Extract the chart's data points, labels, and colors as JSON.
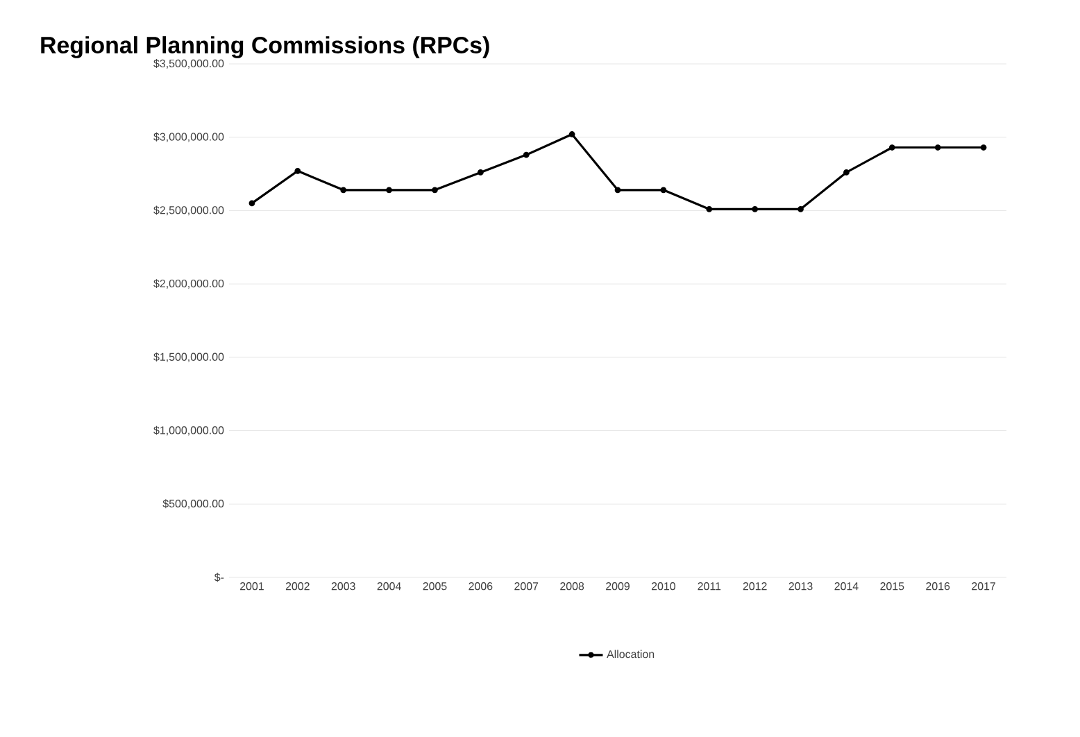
{
  "chart_data": {
    "type": "line",
    "title": "Regional Planning Commissions (RPCs)",
    "categories": [
      "2001",
      "2002",
      "2003",
      "2004",
      "2005",
      "2006",
      "2007",
      "2008",
      "2009",
      "2010",
      "2011",
      "2012",
      "2013",
      "2014",
      "2015",
      "2016",
      "2017"
    ],
    "series": [
      {
        "name": "Allocation",
        "color": "#000000",
        "values": [
          2550000,
          2770000,
          2640000,
          2640000,
          2640000,
          2760000,
          2880000,
          3020000,
          2640000,
          2640000,
          2510000,
          2510000,
          2510000,
          2760000,
          2930000,
          2930000,
          2930000
        ]
      }
    ],
    "ylim": [
      0,
      3500000
    ],
    "yticks": [
      {
        "value": 0,
        "label": "$-"
      },
      {
        "value": 500000,
        "label": "$500,000.00"
      },
      {
        "value": 1000000,
        "label": "$1,000,000.00"
      },
      {
        "value": 1500000,
        "label": "$1,500,000.00"
      },
      {
        "value": 2000000,
        "label": "$2,000,000.00"
      },
      {
        "value": 2500000,
        "label": "$2,500,000.00"
      },
      {
        "value": 3000000,
        "label": "$3,000,000.00"
      },
      {
        "value": 3500000,
        "label": "$3,500,000.00"
      }
    ],
    "grid": "y",
    "legend": "bottom",
    "marker": "circle",
    "line_style": "solid"
  }
}
